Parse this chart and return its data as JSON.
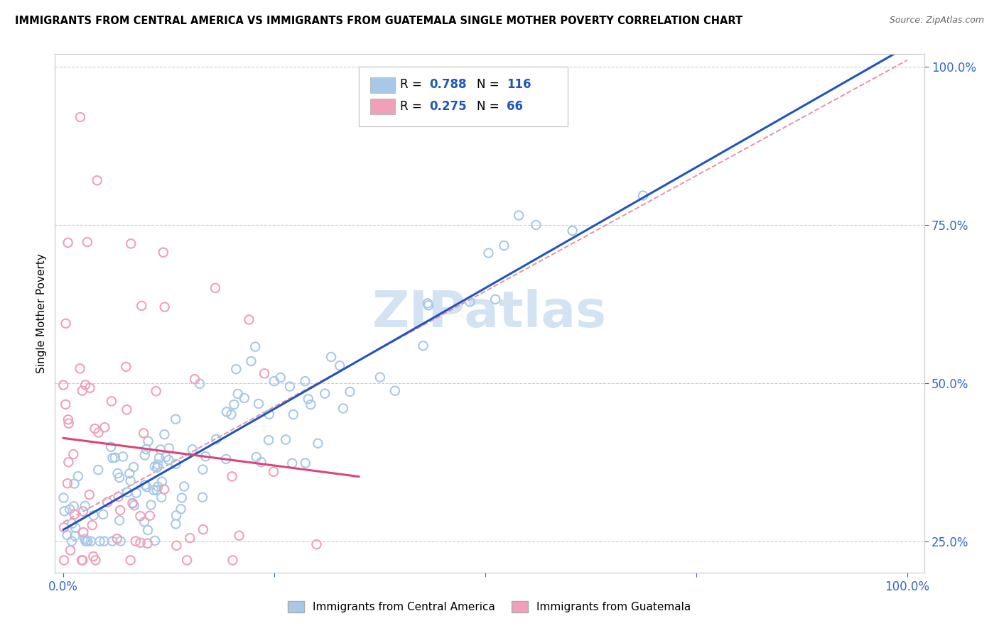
{
  "title": "IMMIGRANTS FROM CENTRAL AMERICA VS IMMIGRANTS FROM GUATEMALA SINGLE MOTHER POVERTY CORRELATION CHART",
  "source": "Source: ZipAtlas.com",
  "ylabel": "Single Mother Poverty",
  "legend_label1": "Immigrants from Central America",
  "legend_label2": "Immigrants from Guatemala",
  "r_blue": 0.788,
  "n_blue": 116,
  "r_pink": 0.275,
  "n_pink": 66,
  "blue_color": "#a8c8e8",
  "pink_color": "#f0a0b8",
  "blue_line_color": "#2255bb",
  "pink_line_color": "#dd4477",
  "dashed_line_color": "#e08898",
  "watermark_color": "#c8ddf0",
  "watermark": "ZIPatlas",
  "tick_color": "#3366cc",
  "ymin": 0.2,
  "ymax": 1.02,
  "xmin": -0.01,
  "xmax": 1.02
}
